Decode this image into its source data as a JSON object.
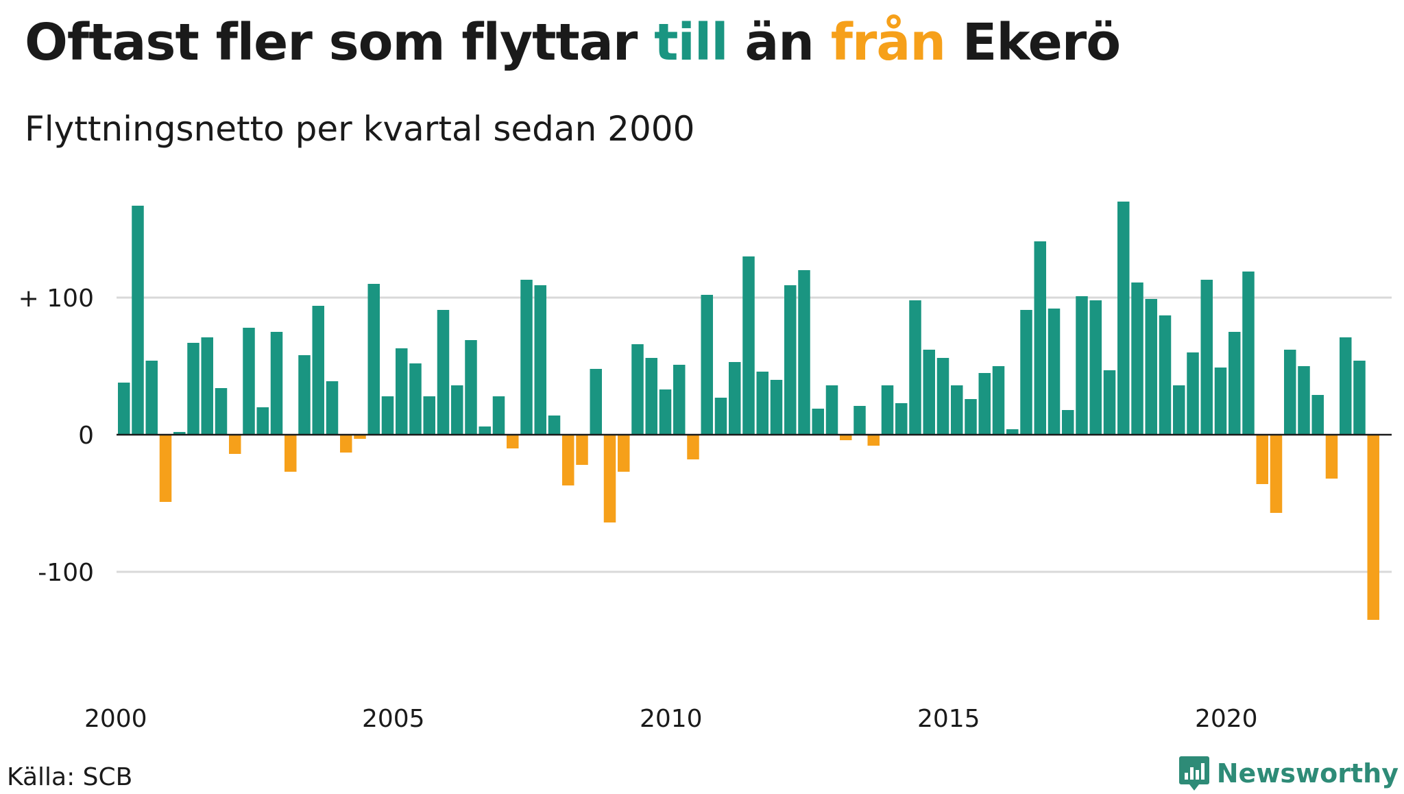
{
  "title": {
    "part1": "Oftast fler som flyttar ",
    "part2": "till",
    "part3": " än ",
    "part4": "från",
    "part5": " Ekerö"
  },
  "subtitle": "Flyttningsnetto per kvartal sedan 2000",
  "source": "Källa: SCB",
  "brand": {
    "name": "Newsworthy",
    "icon": "newsworthy-logo-icon"
  },
  "colors": {
    "positive": "#1a9581",
    "negative": "#f6a01a",
    "grid": "#d9d9d9",
    "zero_line": "#1a1a1a",
    "brand": "#2e8b77"
  },
  "chart_data": {
    "type": "bar",
    "title": "Oftast fler som flyttar till än från Ekerö",
    "subtitle": "Flyttningsnetto per kvartal sedan 2000",
    "ylim": [
      -160,
      180
    ],
    "yticks": [
      {
        "value": 100,
        "label": "+ 100"
      },
      {
        "value": 0,
        "label": "0"
      },
      {
        "value": -100,
        "label": "-100"
      }
    ],
    "xlim": [
      2000.0,
      2023.0
    ],
    "xticks": [
      {
        "value": 2000,
        "label": "2000"
      },
      {
        "value": 2005,
        "label": "2005"
      },
      {
        "value": 2010,
        "label": "2010"
      },
      {
        "value": 2015,
        "label": "2015"
      },
      {
        "value": 2020,
        "label": "2020"
      }
    ],
    "grid": true,
    "start_quarter": "2000 Q1",
    "values": [
      38,
      167,
      54,
      -49,
      2,
      67,
      71,
      34,
      -14,
      78,
      20,
      75,
      -27,
      58,
      94,
      39,
      -13,
      -3,
      110,
      28,
      63,
      52,
      28,
      91,
      36,
      69,
      6,
      28,
      -10,
      113,
      109,
      14,
      -37,
      -22,
      48,
      -64,
      -27,
      66,
      56,
      33,
      51,
      -18,
      102,
      27,
      53,
      130,
      46,
      40,
      109,
      120,
      19,
      36,
      -4,
      21,
      -8,
      36,
      23,
      98,
      62,
      56,
      36,
      26,
      45,
      50,
      4,
      91,
      141,
      92,
      18,
      101,
      98,
      47,
      170,
      111,
      99,
      87,
      36,
      60,
      113,
      49,
      75,
      119,
      -36,
      -57,
      62,
      50,
      29,
      -32,
      71,
      54,
      -135
    ]
  }
}
